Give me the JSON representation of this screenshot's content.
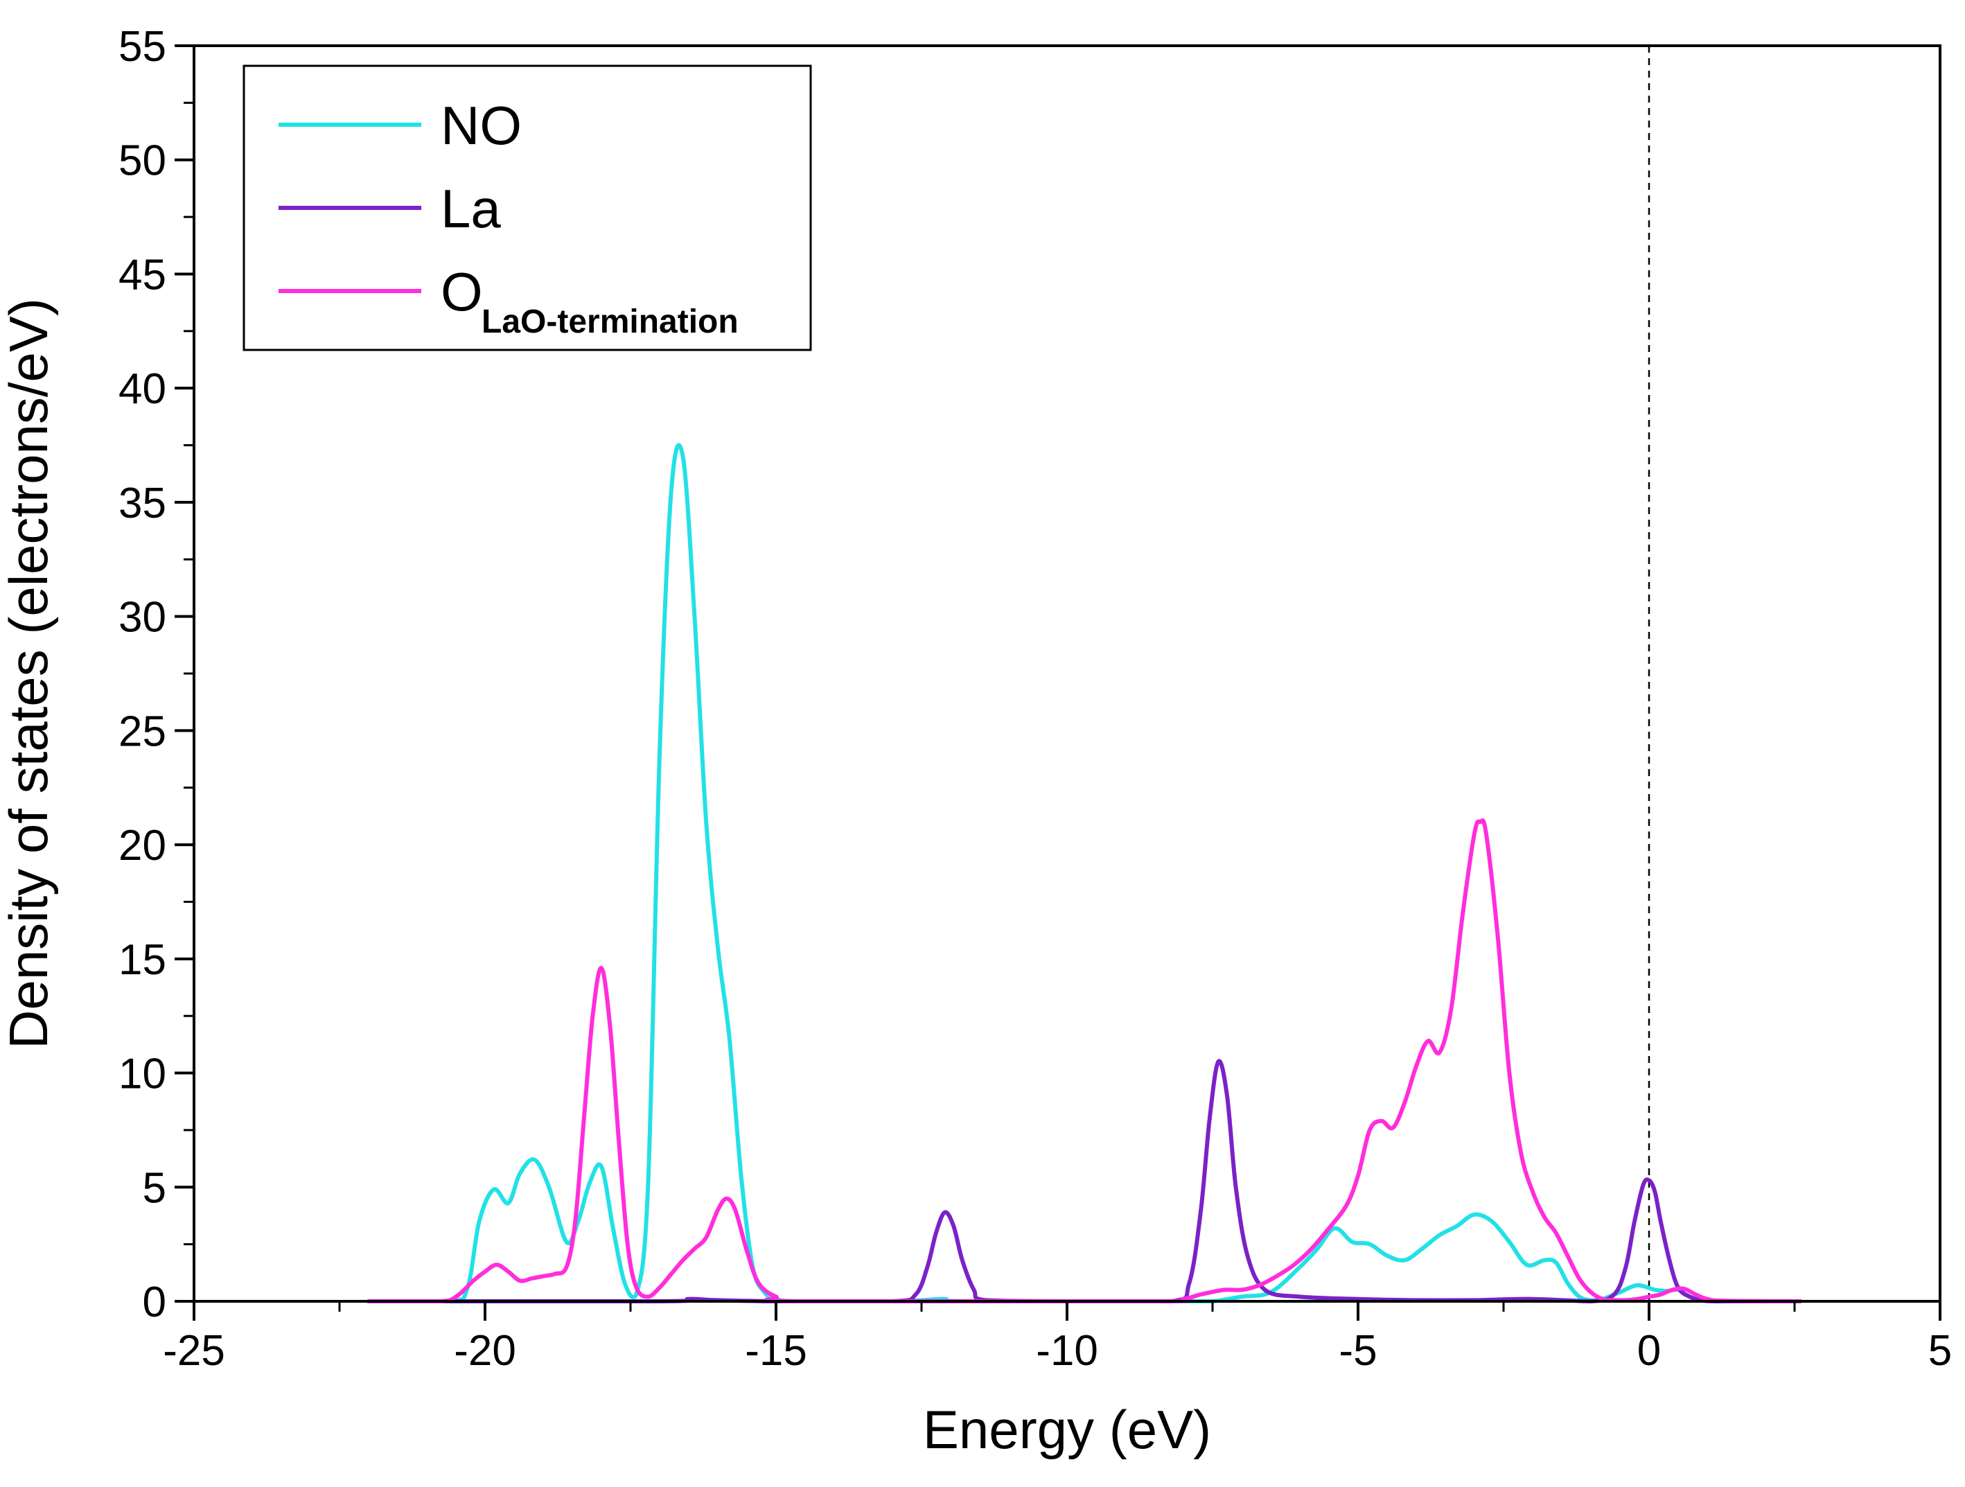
{
  "chart_data": {
    "type": "line",
    "title": "",
    "xlabel": "Energy (eV)",
    "ylabel": "Density of states (electrons/eV)",
    "xlim": [
      -25,
      5
    ],
    "ylim": [
      0,
      55
    ],
    "xticks": [
      -25,
      -20,
      -15,
      -10,
      -5,
      0,
      5
    ],
    "yticks": [
      0,
      5,
      10,
      15,
      20,
      25,
      30,
      35,
      40,
      45,
      50,
      55
    ],
    "xtick_labels": [
      "-25",
      "-20",
      "-15",
      "-10",
      "-5",
      "0",
      "5"
    ],
    "ytick_labels": [
      "0",
      "5",
      "10",
      "15",
      "20",
      "25",
      "30",
      "35",
      "40",
      "45",
      "50",
      "55"
    ],
    "fermi_level": 0,
    "legend_position": "top-left",
    "series": [
      {
        "name": "NO",
        "color": "#22e1e6",
        "x": [
          -22.0,
          -20.6,
          -20.3,
          -20.1,
          -19.85,
          -19.6,
          -19.4,
          -19.15,
          -18.9,
          -18.6,
          -18.4,
          -18.2,
          -18.0,
          -17.8,
          -17.6,
          -17.4,
          -17.2,
          -17.0,
          -16.8,
          -16.6,
          -16.4,
          -16.2,
          -16.0,
          -15.8,
          -15.6,
          -15.4,
          -15.2,
          -15.0,
          -14.6,
          -13.0,
          -12.5,
          -12.1,
          -11.7,
          -8.0,
          -7.5,
          -7.0,
          -6.5,
          -6.0,
          -5.7,
          -5.4,
          -5.1,
          -4.8,
          -4.5,
          -4.2,
          -3.9,
          -3.6,
          -3.3,
          -3.0,
          -2.7,
          -2.4,
          -2.1,
          -1.8,
          -1.6,
          -1.4,
          -1.2,
          -1.0,
          -0.8,
          -0.5,
          -0.2,
          0.1,
          0.3,
          0.5,
          0.7,
          1.0,
          1.5,
          2.6
        ],
        "y": [
          0,
          0,
          0.6,
          3.5,
          4.9,
          4.3,
          5.6,
          6.2,
          5.0,
          2.6,
          3.5,
          5.2,
          5.9,
          3.2,
          0.8,
          0.3,
          5.0,
          24.0,
          35.5,
          37.0,
          30.0,
          21.0,
          15.5,
          11.5,
          5.5,
          1.5,
          0.4,
          0.1,
          0,
          0,
          0.05,
          0.1,
          0,
          0,
          0,
          0.2,
          0.4,
          1.5,
          2.3,
          3.2,
          2.6,
          2.5,
          2.0,
          1.8,
          2.3,
          2.9,
          3.3,
          3.8,
          3.5,
          2.6,
          1.6,
          1.8,
          1.7,
          0.8,
          0.2,
          0.05,
          0.1,
          0.4,
          0.7,
          0.5,
          0.45,
          0.5,
          0.2,
          0.05,
          0,
          0
        ]
      },
      {
        "name": "La",
        "color": "#7a22c8",
        "x": [
          -22.0,
          -17.0,
          -16.5,
          -16.0,
          -15.0,
          -13.0,
          -12.6,
          -12.4,
          -12.25,
          -12.1,
          -11.95,
          -11.8,
          -11.6,
          -11.4,
          -10.0,
          -8.2,
          -7.9,
          -7.7,
          -7.55,
          -7.4,
          -7.25,
          -7.1,
          -6.9,
          -6.6,
          -6.0,
          -5.0,
          -4.0,
          -3.0,
          -2.0,
          -1.0,
          -0.6,
          -0.4,
          -0.25,
          -0.1,
          0.0,
          0.1,
          0.2,
          0.35,
          0.5,
          0.7,
          0.9,
          1.2,
          2.6
        ],
        "y": [
          0,
          0,
          0.1,
          0.05,
          0,
          0,
          0.3,
          1.5,
          3.0,
          3.9,
          3.3,
          1.8,
          0.5,
          0.05,
          0,
          0,
          0.8,
          4.0,
          8.0,
          10.5,
          9.0,
          5.0,
          2.0,
          0.5,
          0.2,
          0.1,
          0.05,
          0.05,
          0.1,
          0,
          0.3,
          1.5,
          3.5,
          5.1,
          5.3,
          4.8,
          3.5,
          1.8,
          0.6,
          0.2,
          0.05,
          0,
          0
        ]
      },
      {
        "name": "O_LaO-termination",
        "legend_main": "O",
        "legend_sub": "LaO-termination",
        "color": "#ff2ddc",
        "x": [
          -22.0,
          -20.8,
          -20.5,
          -20.2,
          -20.0,
          -19.8,
          -19.6,
          -19.4,
          -19.2,
          -19.0,
          -18.8,
          -18.6,
          -18.45,
          -18.3,
          -18.15,
          -18.0,
          -17.85,
          -17.7,
          -17.55,
          -17.4,
          -17.2,
          -17.0,
          -16.8,
          -16.6,
          -16.4,
          -16.2,
          -16.0,
          -15.85,
          -15.7,
          -15.5,
          -15.3,
          -15.0,
          -14.6,
          -8.5,
          -8.0,
          -7.7,
          -7.3,
          -7.0,
          -6.7,
          -6.4,
          -6.1,
          -5.8,
          -5.5,
          -5.2,
          -5.0,
          -4.8,
          -4.6,
          -4.4,
          -4.2,
          -4.0,
          -3.8,
          -3.6,
          -3.4,
          -3.2,
          -3.0,
          -2.9,
          -2.8,
          -2.6,
          -2.4,
          -2.2,
          -2.0,
          -1.8,
          -1.6,
          -1.4,
          -1.2,
          -1.0,
          -0.8,
          -0.6,
          -0.4,
          -0.2,
          0.0,
          0.2,
          0.4,
          0.6,
          0.8,
          1.0,
          1.3,
          2.6
        ],
        "y": [
          0,
          0,
          0.2,
          0.9,
          1.3,
          1.6,
          1.3,
          0.9,
          1.0,
          1.1,
          1.2,
          1.5,
          3.5,
          8.0,
          12.5,
          14.6,
          12.0,
          7.0,
          2.5,
          0.6,
          0.2,
          0.6,
          1.2,
          1.8,
          2.3,
          2.8,
          4.0,
          4.5,
          4.0,
          2.2,
          0.8,
          0.2,
          0,
          0,
          0.1,
          0.3,
          0.5,
          0.5,
          0.7,
          1.1,
          1.6,
          2.3,
          3.2,
          4.2,
          5.5,
          7.5,
          7.9,
          7.6,
          8.7,
          10.3,
          11.4,
          10.9,
          12.8,
          17.0,
          20.5,
          21.0,
          20.5,
          16.0,
          10.0,
          6.5,
          4.8,
          3.7,
          3.0,
          2.0,
          1.0,
          0.4,
          0.1,
          0.05,
          0.05,
          0.1,
          0.2,
          0.3,
          0.5,
          0.55,
          0.3,
          0.1,
          0.02,
          0
        ]
      }
    ]
  }
}
